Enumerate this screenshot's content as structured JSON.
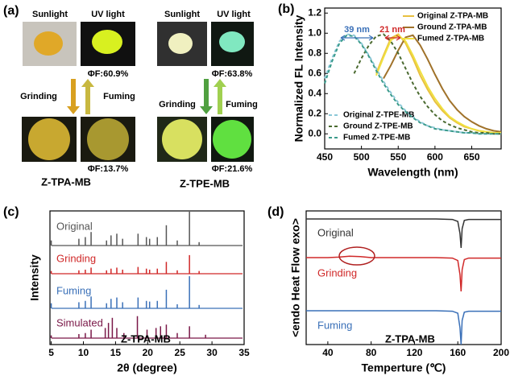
{
  "photo_panel": {
    "label": "(a)",
    "groups": [
      {
        "sunlight": "Sunlight",
        "uv": "UV light",
        "qy_top": "ΦF:60.9%",
        "grinding": "Grinding",
        "fuming": "Fuming",
        "qy_bottom": "ΦF:13.7%",
        "name": "Z-TPA-MB"
      },
      {
        "sunlight": "Sunlight",
        "uv": "UV light",
        "qy_top": "ΦF:63.8%",
        "grinding": "Grinding",
        "fuming": "Fuming",
        "qy_bottom": "ΦF:21.6%",
        "name": "Z-TPE-MB"
      }
    ]
  },
  "chart_data": [
    {
      "type": "line",
      "panel_label": "(b)",
      "x_label": "Wavelength (nm)",
      "y_label": "Normalized FL Intensity",
      "annotations": [
        "39 nm",
        "21 nm"
      ],
      "xlim": [
        450,
        690
      ],
      "xticks": [
        450,
        500,
        550,
        600,
        650
      ],
      "ylim": [
        -0.15,
        1.25
      ],
      "yticks": [
        {
          "value": 0,
          "label": "0.0"
        },
        0.2,
        0.4,
        0.6,
        0.8,
        {
          "value": 1,
          "label": "1.0"
        },
        1.2
      ],
      "x": [
        450,
        460,
        470,
        480,
        490,
        500,
        510,
        520,
        530,
        540,
        550,
        560,
        570,
        580,
        590,
        600,
        610,
        620,
        630,
        640,
        650,
        660,
        670,
        680,
        690
      ],
      "series": [
        {
          "name": "Original Z-TPA-MB",
          "color": "#e8c040",
          "style": "solid",
          "values": [
            null,
            null,
            null,
            null,
            null,
            null,
            null,
            0.6,
            0.78,
            0.95,
            0.99,
            0.9,
            0.75,
            0.58,
            0.44,
            0.32,
            0.23,
            0.16,
            0.11,
            0.07,
            0.05,
            0.03,
            0.02,
            0.01,
            0.01
          ]
        },
        {
          "name": "Ground Z-TPA-MB",
          "color": "#a0722a",
          "style": "solid",
          "values": [
            null,
            null,
            null,
            null,
            null,
            null,
            null,
            null,
            0.55,
            0.68,
            0.83,
            0.96,
            0.98,
            0.88,
            0.74,
            0.59,
            0.45,
            0.33,
            0.24,
            0.17,
            0.12,
            0.08,
            0.05,
            0.03,
            0.02
          ]
        },
        {
          "name": "Fumed  Z-TPA-MB",
          "color": "#f0e040",
          "style": "solid",
          "values": [
            null,
            null,
            null,
            null,
            null,
            null,
            null,
            0.58,
            0.76,
            0.93,
            0.98,
            0.92,
            0.78,
            0.62,
            0.47,
            0.35,
            0.25,
            0.17,
            0.12,
            0.08,
            0.05,
            0.03,
            0.02,
            0.01,
            0.01
          ]
        },
        {
          "name": "Original Z-TPE-MB",
          "color": "#8cc8d8",
          "style": "dashed",
          "values": [
            0.55,
            0.75,
            0.92,
            0.99,
            0.98,
            0.9,
            0.78,
            0.65,
            0.52,
            0.41,
            0.31,
            0.23,
            0.17,
            0.12,
            0.08,
            0.06,
            0.04,
            0.03,
            0.02,
            0.01,
            0.01,
            0,
            0,
            0,
            0
          ]
        },
        {
          "name": "Ground Z-TPE-MB",
          "color": "#4a6a30",
          "style": "dashed",
          "values": [
            null,
            null,
            null,
            null,
            0.6,
            0.75,
            0.88,
            0.97,
            0.99,
            0.92,
            0.8,
            0.65,
            0.5,
            0.37,
            0.27,
            0.19,
            0.13,
            0.09,
            0.06,
            0.04,
            0.02,
            0.01,
            0.01,
            0,
            0
          ]
        },
        {
          "name": "Fumed  Z-TPE-MB",
          "color": "#3a9a8a",
          "style": "dashed",
          "values": [
            0.5,
            0.72,
            0.9,
            0.98,
            0.97,
            0.89,
            0.77,
            0.63,
            0.5,
            0.39,
            0.29,
            0.22,
            0.16,
            0.11,
            0.08,
            0.05,
            0.04,
            0.03,
            0.02,
            0.01,
            0.01,
            0,
            0,
            0,
            0
          ]
        }
      ]
    },
    {
      "type": "stick",
      "panel_label": "(c)",
      "x_label": "2θ (degree)",
      "y_label": "Intensity",
      "annotation": "Z-TPA-MB",
      "xlim": [
        4.8,
        35
      ],
      "xticks": [
        5,
        10,
        15,
        20,
        25,
        30,
        35
      ],
      "series": [
        {
          "name": "Original",
          "color": "#555555",
          "x": [
            5.0,
            9.3,
            10.3,
            11.2,
            13.6,
            14.3,
            15.2,
            16.1,
            18.5,
            19.8,
            20.3,
            21.5,
            22.9,
            24.6,
            26.5,
            28.0
          ],
          "values": [
            15,
            20,
            25,
            40,
            15,
            30,
            35,
            20,
            35,
            25,
            20,
            25,
            60,
            15,
            100,
            10
          ]
        },
        {
          "name": "Grinding",
          "color": "#d02828",
          "x": [
            5.0,
            9.3,
            10.3,
            11.2,
            13.6,
            14.3,
            15.2,
            16.1,
            18.5,
            19.8,
            20.3,
            21.5,
            22.9,
            24.6,
            26.5,
            28.0
          ],
          "values": [
            8,
            10,
            12,
            18,
            10,
            15,
            18,
            12,
            20,
            15,
            12,
            15,
            35,
            10,
            55,
            8
          ]
        },
        {
          "name": "Fuming",
          "color": "#3a70b8",
          "x": [
            5.0,
            9.3,
            10.3,
            11.2,
            13.6,
            14.3,
            15.2,
            16.1,
            18.5,
            19.8,
            20.3,
            21.5,
            22.9,
            24.6,
            26.5,
            28.0
          ],
          "values": [
            15,
            18,
            22,
            35,
            15,
            28,
            32,
            18,
            32,
            22,
            20,
            22,
            55,
            12,
            95,
            10
          ]
        },
        {
          "name": "Simulated",
          "color": "#7a1848",
          "x": [
            5.0,
            9.3,
            10.3,
            11.2,
            13.4,
            13.9,
            14.5,
            15.2,
            16.3,
            18.4,
            19.9,
            21.3,
            22.0,
            22.9,
            24.6,
            26.5,
            29.0
          ],
          "values": [
            8,
            12,
            15,
            25,
            30,
            45,
            60,
            30,
            15,
            65,
            25,
            30,
            35,
            40,
            15,
            35,
            10
          ]
        }
      ]
    },
    {
      "type": "trace",
      "panel_label": "(d)",
      "x_label": "Temperture (℃)",
      "y_label": "<endo Heat Flow exo>",
      "annotation": "Z-TPA-MB",
      "xlim": [
        20,
        200
      ],
      "xticks": [
        40,
        80,
        120,
        160,
        200
      ],
      "x": [
        20,
        40,
        50,
        60,
        70,
        80,
        100,
        140,
        155,
        160,
        162,
        163,
        164,
        166,
        170,
        200
      ],
      "series": [
        {
          "name": "Original",
          "color": "#333333",
          "values": [
            0,
            0,
            0,
            0,
            0,
            0,
            0,
            0,
            -1,
            -5,
            -30,
            -60,
            -20,
            -3,
            -1,
            -1
          ]
        },
        {
          "name": "Grinding",
          "color": "#d02828",
          "values": [
            0,
            0,
            1,
            3,
            2,
            0,
            0,
            0,
            -1,
            -6,
            -35,
            -70,
            -25,
            -4,
            -1,
            -1
          ]
        },
        {
          "name": "Fuming",
          "color": "#3a70b8",
          "values": [
            0,
            0,
            0,
            0,
            0,
            0,
            0,
            0,
            -1,
            -5,
            -35,
            -70,
            -20,
            -3,
            -1,
            -1
          ]
        }
      ]
    }
  ]
}
